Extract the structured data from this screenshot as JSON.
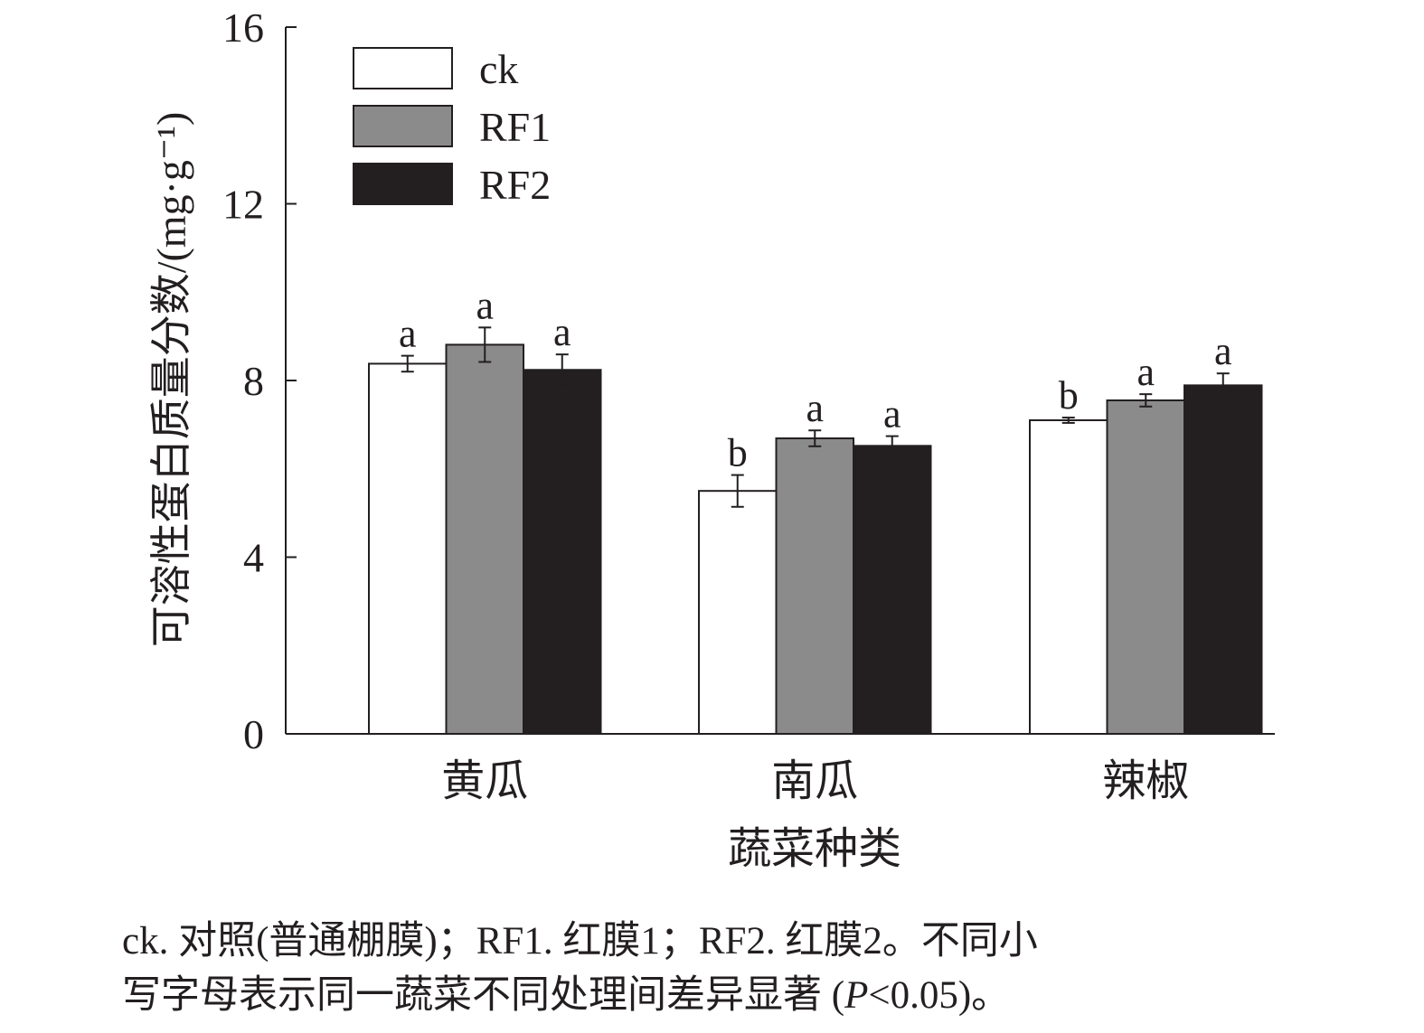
{
  "chart_data": {
    "type": "bar",
    "title": "",
    "xlabel": "蔬菜种类",
    "ylabel": "可溶性蛋白质量分数/(mg·g⁻¹)",
    "ylim": [
      0,
      16
    ],
    "yticks": [
      0,
      4,
      8,
      12,
      16
    ],
    "categories": [
      "黄瓜",
      "南瓜",
      "辣椒"
    ],
    "series": [
      {
        "name": "ck",
        "color": "#ffffff",
        "values": [
          8.38,
          5.5,
          7.1
        ],
        "errors": [
          0.18,
          0.36,
          0.06
        ],
        "labels": [
          "a",
          "b",
          "b"
        ]
      },
      {
        "name": "RF1",
        "color": "#8c8b8b",
        "values": [
          8.81,
          6.69,
          7.55
        ],
        "errors": [
          0.39,
          0.18,
          0.14
        ],
        "labels": [
          "a",
          "a",
          "a"
        ]
      },
      {
        "name": "RF2",
        "color": "#231f20",
        "values": [
          8.24,
          6.52,
          7.89
        ],
        "errors": [
          0.35,
          0.22,
          0.27
        ],
        "labels": [
          "a",
          "a",
          "a"
        ]
      }
    ],
    "legend_position": "top-left",
    "grid": false
  },
  "caption": {
    "line1": "ck. 对照(普通棚膜)；RF1. 红膜1；RF2. 红膜2。不同小",
    "line2_pre": "写字母表示同一蔬菜不同处理间差异显著 (",
    "line2_italic": "P",
    "line2_post": "<0.05)。"
  }
}
